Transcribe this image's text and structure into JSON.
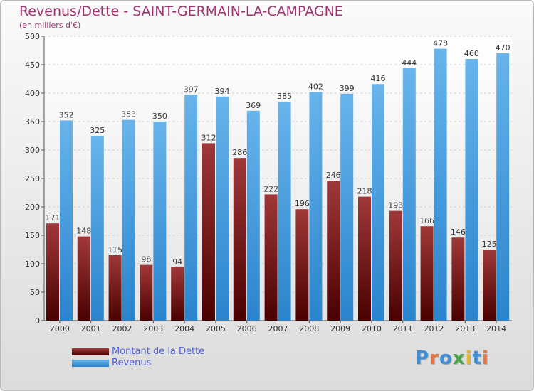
{
  "title": "Revenus/Dette - SAINT-GERMAIN-LA-CAMPAGNE",
  "subtitle": "(en milliers d'€)",
  "colors": {
    "debt_top": "#a03838",
    "debt_bottom": "#4a0000",
    "revenue_top": "#68b4ec",
    "revenue_bottom": "#2a84cc",
    "title": "#a0326e",
    "legend_text": "#5060d8"
  },
  "logo": {
    "letters": [
      "P",
      "r",
      "o",
      "x",
      "i",
      "t",
      "i"
    ],
    "colors": [
      "#3f8fd6",
      "#e8743b",
      "#3f8fd6",
      "#49a84a",
      "#e3b72d",
      "#3f8fd6",
      "#e8743b"
    ]
  },
  "legend": {
    "items": [
      {
        "label": "Montant de la Dette",
        "series": "debt"
      },
      {
        "label": "Revenus",
        "series": "revenue"
      }
    ],
    "position": "bottom-left"
  },
  "chart_data": {
    "type": "bar",
    "title": "Revenus/Dette - SAINT-GERMAIN-LA-CAMPAGNE",
    "subtitle": "(en milliers d'€)",
    "categories": [
      "2000",
      "2001",
      "2002",
      "2003",
      "2004",
      "2005",
      "2006",
      "2007",
      "2008",
      "2009",
      "2010",
      "2011",
      "2012",
      "2013",
      "2014"
    ],
    "series": [
      {
        "name": "Montant de la Dette",
        "key": "debt",
        "values": [
          171,
          148,
          115,
          98,
          94,
          312,
          286,
          222,
          196,
          246,
          218,
          193,
          166,
          146,
          125
        ]
      },
      {
        "name": "Revenus",
        "key": "revenue",
        "values": [
          352,
          325,
          353,
          350,
          397,
          394,
          369,
          385,
          402,
          399,
          416,
          444,
          478,
          460,
          470
        ]
      }
    ],
    "ylim": [
      0,
      500
    ],
    "yticks": [
      0,
      50,
      100,
      150,
      200,
      250,
      300,
      350,
      400,
      450,
      500
    ],
    "grid": true,
    "xlabel": "",
    "ylabel": ""
  }
}
